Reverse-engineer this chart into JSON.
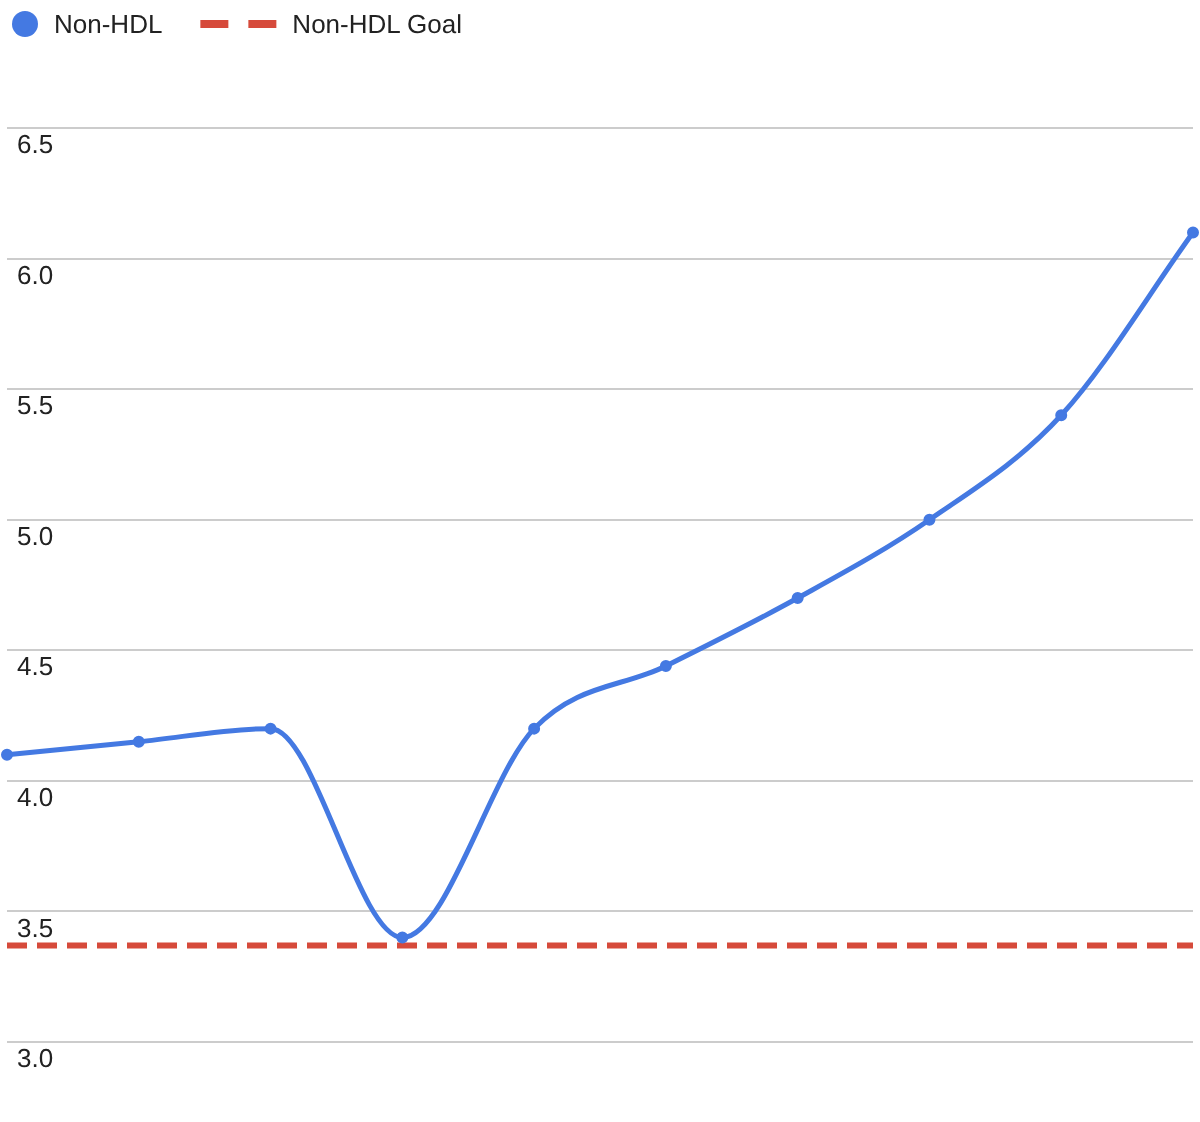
{
  "chart_data": {
    "type": "line",
    "categories": [
      null,
      null,
      null,
      null,
      null,
      null,
      null,
      null,
      null,
      null
    ],
    "series": [
      {
        "name": "Non-HDL",
        "color": "#4479e2",
        "values": [
          4.1,
          4.15,
          4.2,
          3.4,
          4.2,
          4.44,
          4.7,
          5,
          5.4,
          6.1
        ]
      }
    ],
    "ylim": [
      3,
      6.5
    ],
    "yticks": [
      {
        "value": 3,
        "label": "3.0"
      },
      3.5,
      {
        "value": 4,
        "label": "4.0"
      },
      4.5,
      {
        "value": 5,
        "label": "5.0"
      },
      5.5,
      {
        "value": 6,
        "label": "6.0"
      },
      6.5
    ],
    "ref_lines": [
      {
        "axis": "y",
        "value": 3.37,
        "label": "Non-HDL Goal",
        "color": "#d64a3b",
        "line_style": "dashed"
      }
    ],
    "grid": "y",
    "legend": "top left",
    "marker": "circle",
    "line_style": "solid",
    "tick_labels": "y"
  }
}
